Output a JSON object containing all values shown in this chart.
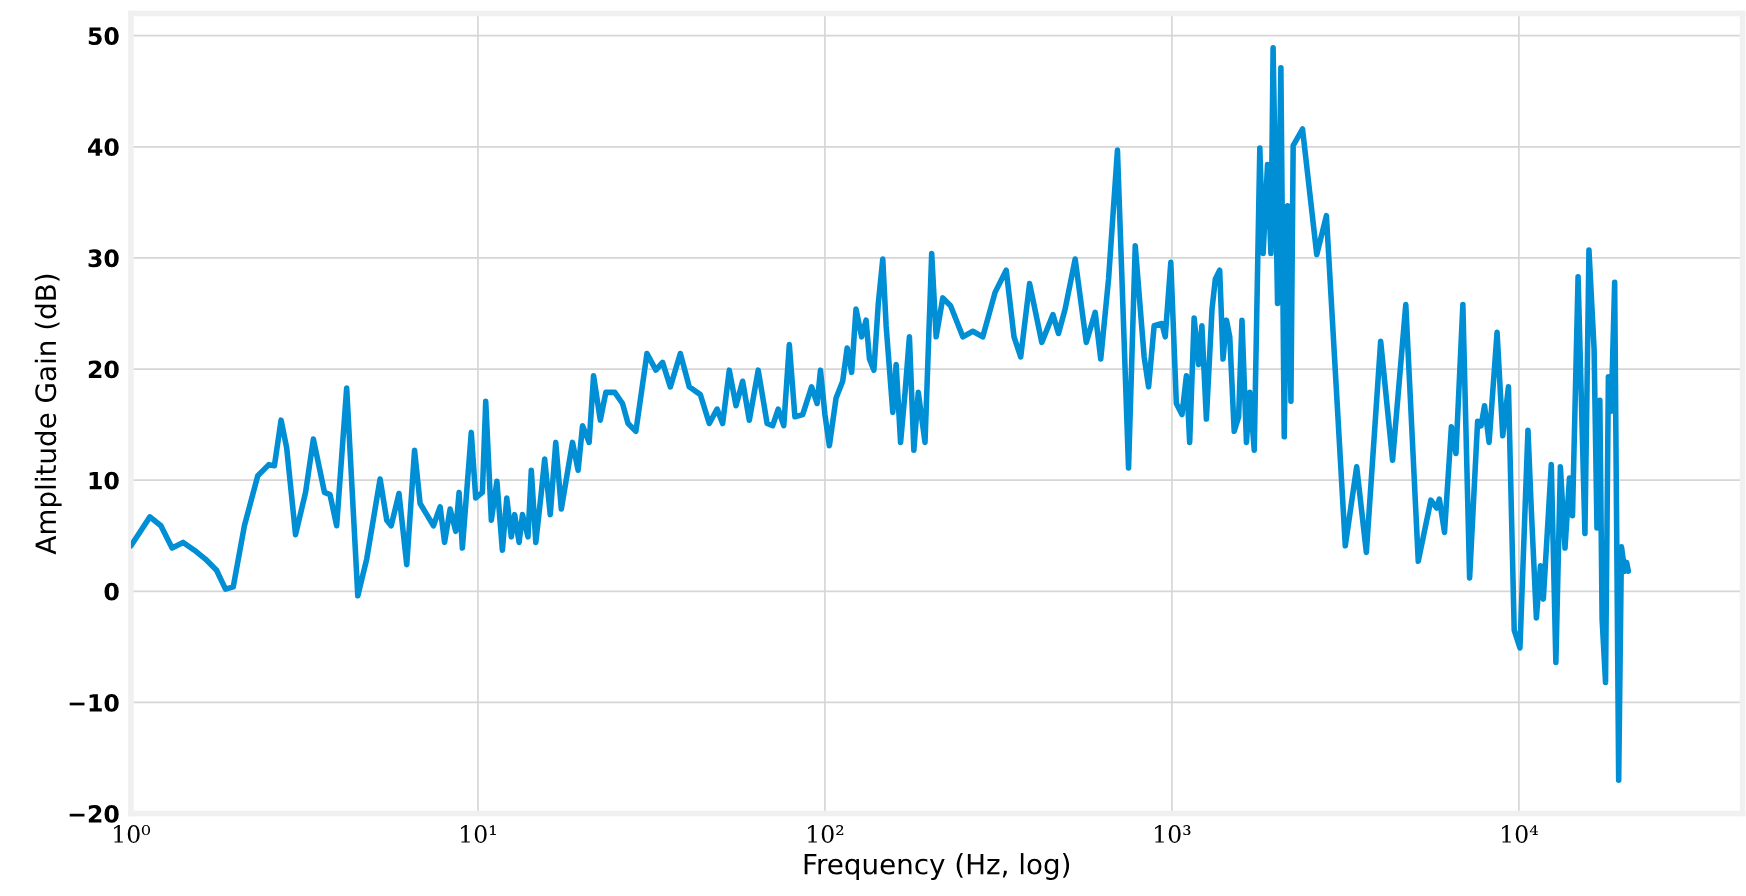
{
  "chart_data": {
    "type": "line",
    "xlabel": "Frequency (Hz, log)",
    "ylabel": "Amplitude Gain (dB)",
    "log": "x",
    "grid": true,
    "xlim": [
      1,
      44100
    ],
    "ylim": [
      -20,
      52
    ],
    "xticks": [
      {
        "value": 1,
        "label": "10⁰"
      },
      {
        "value": 10,
        "label": "10¹"
      },
      {
        "value": 100,
        "label": "10²"
      },
      {
        "value": 1000,
        "label": "10³"
      },
      {
        "value": 10000,
        "label": "10⁴"
      }
    ],
    "yticks": [
      {
        "value": -20,
        "label": "−20"
      },
      {
        "value": -10,
        "label": "−10"
      },
      0,
      10,
      20,
      30,
      40,
      50
    ],
    "series": [
      {
        "color": "#008fd5",
        "x": [
          1.0,
          1.134,
          1.22,
          1.314,
          1.414,
          1.523,
          1.639,
          1.765,
          1.873,
          1.972,
          2.123,
          2.32,
          2.497,
          2.591,
          2.708,
          2.811,
          2.981,
          3.186,
          3.355,
          3.612,
          3.747,
          3.916,
          4.185,
          4.506,
          4.78,
          5.224,
          5.461,
          5.623,
          5.922,
          6.235,
          6.567,
          6.813,
          7.122,
          7.444,
          7.78,
          8.014,
          8.316,
          8.63,
          8.823,
          9.019,
          9.568,
          9.854,
          10.3,
          10.53,
          10.93,
          11.34,
          11.76,
          12.11,
          12.48,
          12.76,
          13.14,
          13.44,
          13.94,
          14.25,
          14.68,
          15.23,
          15.57,
          16.16,
          16.76,
          17.39,
          18.73,
          19.44,
          20.02,
          20.92,
          21.54,
          22.52,
          23.37,
          24.8,
          26.1,
          27.08,
          28.52,
          30.7,
          32.57,
          34.05,
          35.85,
          38.31,
          40.64,
          43.75,
          46.42,
          48.88,
          50.72,
          53.02,
          55.42,
          57.93,
          60.55,
          64.23,
          68.13,
          70.7,
          73.35,
          76.1,
          78.96,
          81.93,
          86.28,
          91.53,
          94.97,
          97.09,
          100,
          103,
          107.7,
          112.5,
          115.9,
          119.4,
          122.9,
          127.6,
          131.4,
          134.4,
          138.4,
          142.5,
          146.8,
          150.1,
          156.9,
          160.4,
          165.2,
          170.2,
          175.2,
          180.4,
          185.8,
          194.3,
          203.1,
          209.2,
          218.6,
          230.2,
          249.7,
          266.9,
          285.1,
          309.3,
          333,
          350.7,
          366.6,
          388.9,
          421.7,
          454.1,
          471.1,
          492.4,
          526.3,
          566.5,
          601,
          623.6,
          656.8,
          696.7,
          749.9,
          784,
          831.7,
          856.6,
          888.8,
          935.9,
          956.8,
          992.7,
          1030,
          1069,
          1101,
          1125,
          1159,
          1194,
          1220,
          1257,
          1305,
          1334,
          1373,
          1404,
          1436,
          1468,
          1512,
          1557,
          1592,
          1640,
          1677,
          1727,
          1792,
          1832,
          1886,
          1929,
          1957,
          2016,
          2061,
          2107,
          2154,
          2203,
          2236,
          2379,
          2615,
          2788,
          3160,
          3408,
          3634,
          3996,
          4324,
          4721,
          5128,
          5576,
          5792,
          5900,
          6104,
          6389,
          6585,
          6895,
          7211,
          7604,
          7780,
          7962,
          8206,
          8651,
          8984,
          9331,
          9694,
          10070,
          10620,
          10860,
          11230,
          11540,
          11760,
          12400,
          12780,
          13170,
          13580,
          13990,
          14270,
          14810,
          15500,
          15920,
          16470,
          16790,
          17110,
          17370,
          17770,
          18110,
          18450,
          18880,
          19390,
          19750,
          20200,
          20440,
          20670
        ],
        "values": [
          4.1,
          6.7,
          5.9,
          3.9,
          4.4,
          3.7,
          2.9,
          1.9,
          0.2,
          0.4,
          5.9,
          10.4,
          11.4,
          11.3,
          15.4,
          12.9,
          5.1,
          8.9,
          13.7,
          8.9,
          8.7,
          5.9,
          18.3,
          -0.4,
          2.9,
          10.1,
          6.4,
          5.9,
          8.8,
          2.4,
          12.7,
          7.9,
          6.9,
          5.9,
          7.6,
          4.4,
          7.4,
          5.4,
          8.9,
          3.9,
          14.3,
          8.4,
          8.9,
          17.1,
          6.4,
          9.9,
          3.7,
          8.4,
          4.9,
          6.9,
          4.4,
          6.9,
          4.9,
          10.9,
          4.4,
          8.9,
          11.9,
          6.9,
          13.4,
          7.4,
          13.4,
          10.9,
          14.9,
          13.4,
          19.4,
          15.4,
          17.9,
          17.9,
          16.9,
          15.1,
          14.4,
          21.4,
          19.9,
          20.6,
          18.4,
          21.4,
          18.4,
          17.7,
          15.1,
          16.4,
          15.1,
          19.9,
          16.7,
          18.9,
          15.4,
          19.9,
          15.1,
          14.9,
          16.4,
          14.9,
          22.2,
          15.7,
          15.9,
          18.4,
          16.9,
          19.9,
          15.9,
          13.1,
          17.4,
          18.9,
          21.9,
          19.7,
          25.4,
          22.9,
          24.4,
          20.9,
          19.9,
          25.9,
          29.9,
          23.9,
          16.1,
          20.4,
          13.4,
          17.9,
          22.9,
          12.7,
          17.9,
          13.4,
          30.4,
          22.9,
          26.4,
          25.7,
          22.9,
          23.4,
          22.9,
          26.9,
          28.9,
          22.9,
          21.1,
          27.7,
          22.4,
          24.9,
          23.2,
          25.4,
          29.9,
          22.4,
          25.1,
          20.9,
          28.1,
          39.7,
          11.1,
          31.1,
          21.1,
          18.4,
          23.9,
          24.1,
          22.9,
          29.6,
          16.9,
          15.9,
          19.4,
          13.4,
          24.6,
          20.4,
          23.9,
          15.5,
          25.4,
          28.1,
          28.9,
          20.9,
          24.4,
          22.9,
          14.4,
          15.7,
          24.4,
          13.4,
          17.9,
          12.7,
          39.9,
          30.4,
          38.4,
          30.4,
          48.9,
          25.9,
          47.1,
          13.9,
          34.7,
          17.1,
          40.1,
          41.6,
          30.3,
          33.8,
          4.1,
          11.2,
          3.5,
          22.5,
          11.8,
          25.8,
          2.7,
          8.2,
          7.5,
          8.3,
          5.3,
          14.8,
          12.4,
          25.8,
          1.2,
          15.3,
          14.9,
          16.7,
          13.4,
          23.3,
          14.0,
          18.4,
          -3.5,
          -5.1,
          14.5,
          7.3,
          -2.4,
          2.3,
          -0.7,
          11.4,
          -6.4,
          11.2,
          3.9,
          10.2,
          6.8,
          28.3,
          5.2,
          30.7,
          21.8,
          5.7,
          17.2,
          -2.5,
          -8.2,
          19.3,
          16.2,
          27.8,
          -17.0,
          4.0,
          1.8,
          2.6,
          1.8
        ]
      }
    ]
  }
}
